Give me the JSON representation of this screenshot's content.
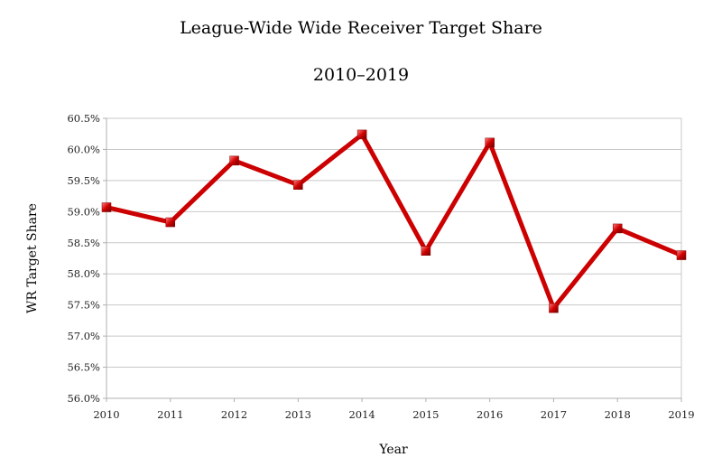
{
  "chart_data": {
    "type": "line",
    "title": "League-Wide Wide Receiver Target Share",
    "subtitle": "2010–2019",
    "xlabel": "Year",
    "ylabel": "WR Target Share",
    "categories": [
      "2010",
      "2011",
      "2012",
      "2013",
      "2014",
      "2015",
      "2016",
      "2017",
      "2018",
      "2019"
    ],
    "series": [
      {
        "name": "WR Target Share",
        "values": [
          59.07,
          58.83,
          59.82,
          59.43,
          60.24,
          58.37,
          60.11,
          57.45,
          58.73,
          58.3
        ],
        "color": "#cc0000"
      }
    ],
    "ylim": [
      56.0,
      60.5
    ],
    "yticks": [
      "56.0%",
      "56.5%",
      "57.0%",
      "57.5%",
      "58.0%",
      "58.5%",
      "59.0%",
      "59.5%",
      "60.0%",
      "60.5%"
    ],
    "grid": true,
    "legend": "none"
  }
}
